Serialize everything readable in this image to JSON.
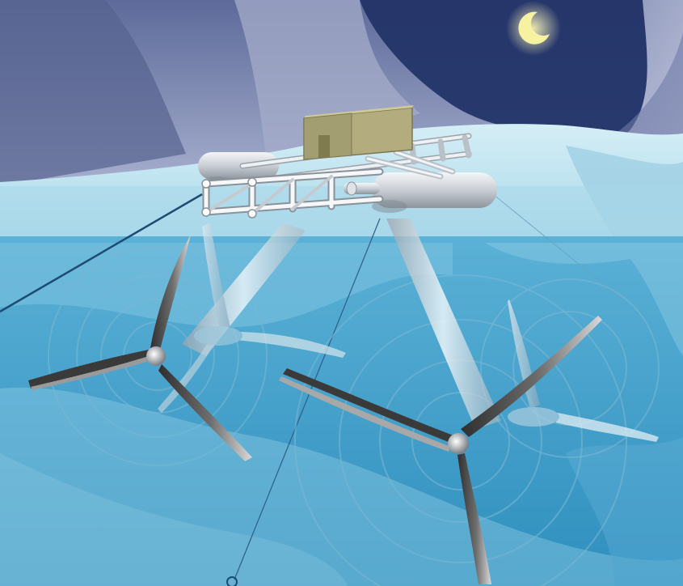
{
  "scene": {
    "sky_color": "#2a3d6e",
    "mountain_color": "#8a93b5",
    "ice_color": "#bfe3ef",
    "water_surface_color": "#a8d8ea",
    "deep_water_color": "#3d9ec8",
    "moon_color": "#f6f2a2",
    "cabin_color": "#b3ad82",
    "frame_color": "#e8ecf0",
    "blade_color": "#4a4a4a"
  },
  "icons": {
    "moon": "moon-icon",
    "turbine": "turbine-icon",
    "platform": "platform-icon",
    "anchor": "anchor-icon"
  },
  "turbines_count": 2
}
